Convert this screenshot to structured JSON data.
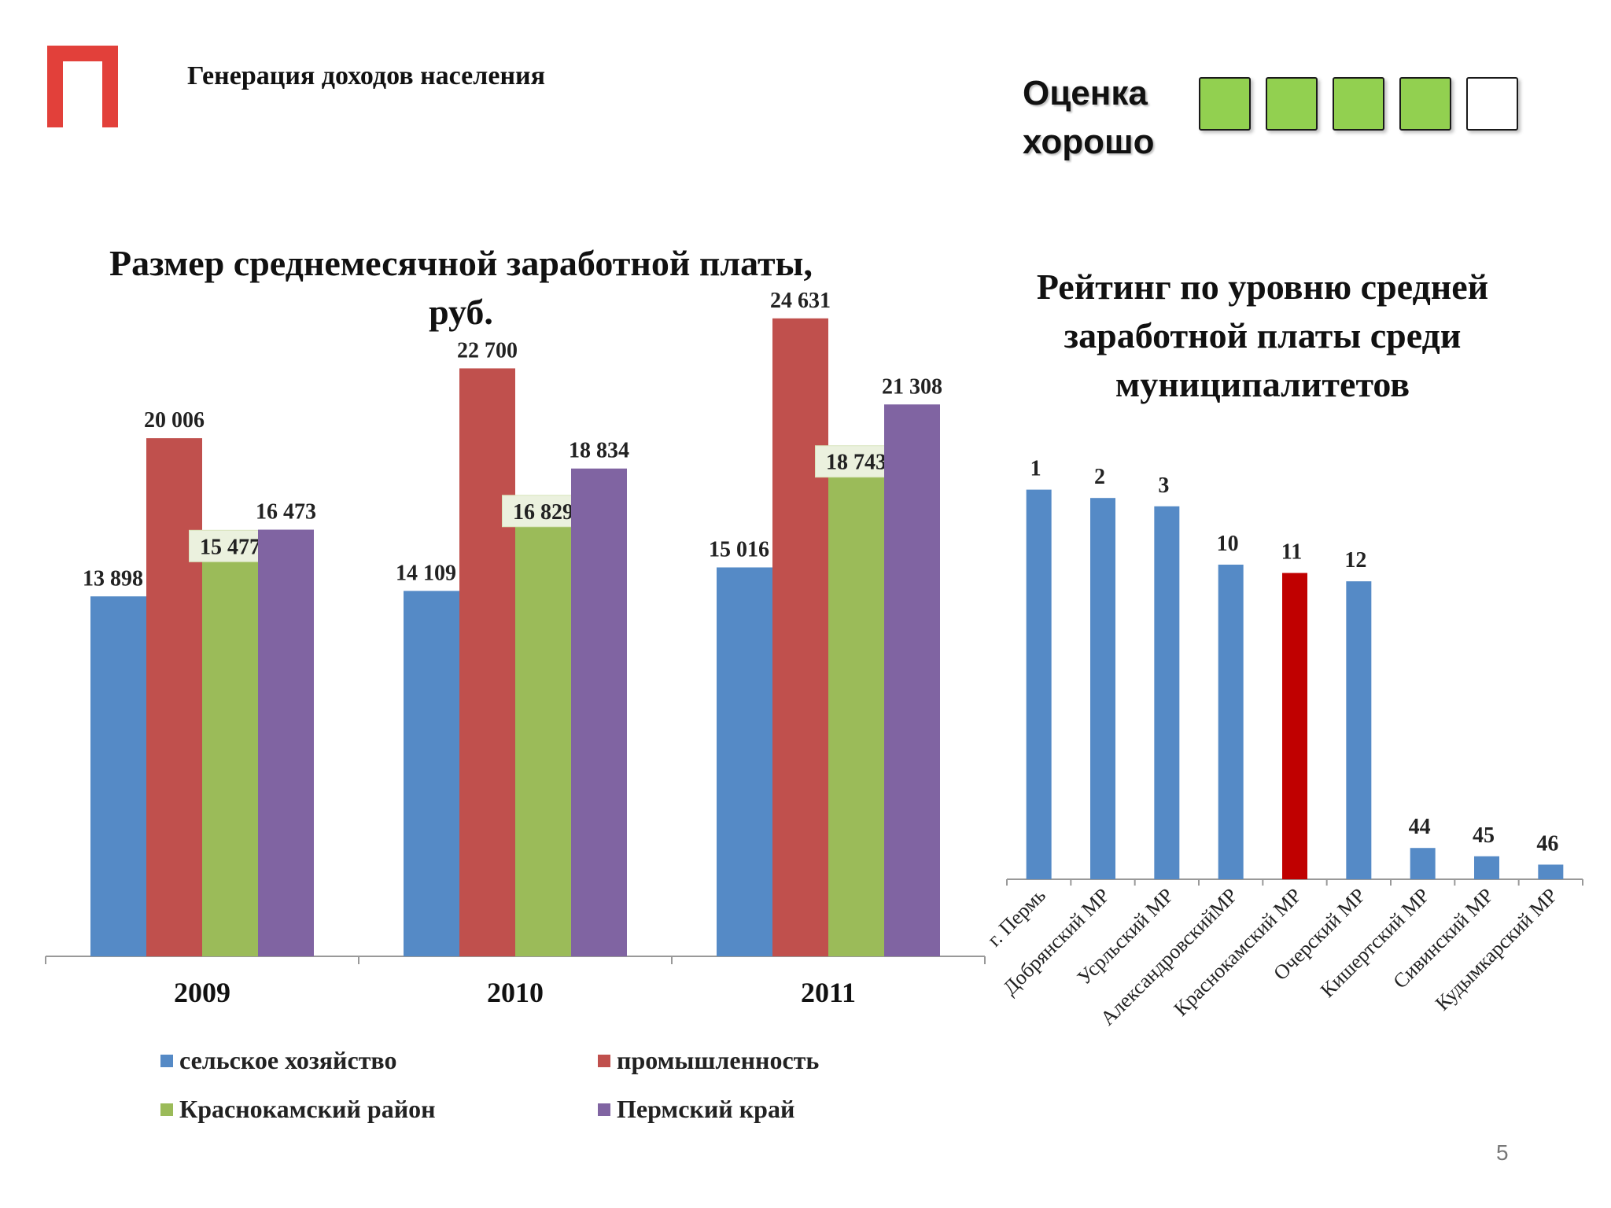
{
  "header": {
    "title": "Генерация доходов населения",
    "logo_color": "#e2403a"
  },
  "rating": {
    "label_line1": "Оценка",
    "label_line2": "хорошо",
    "score": 4,
    "max": 5,
    "filled_color": "#92d050",
    "empty_color": "#ffffff"
  },
  "page_number": "5",
  "chart_data": [
    {
      "type": "bar",
      "title": "Размер среднемесячной заработной платы, руб.",
      "categories": [
        "2009",
        "2010",
        "2011"
      ],
      "series": [
        {
          "name": "сельское хозяйство",
          "color": "#558ac6",
          "values": [
            13898,
            14109,
            15016
          ],
          "labels": [
            "13 898",
            "14 109",
            "15 016"
          ]
        },
        {
          "name": "промышленность",
          "color": "#c0504d",
          "values": [
            20006,
            22700,
            24631
          ],
          "labels": [
            "20 006",
            "22 700",
            "24 631"
          ]
        },
        {
          "name": "Краснокамский район",
          "color": "#9bbb59",
          "values": [
            15477,
            16829,
            18743
          ],
          "labels": [
            "15 477",
            "16 829",
            "18 743"
          ],
          "label_box": true
        },
        {
          "name": "Пермский край",
          "color": "#8064a2",
          "values": [
            16473,
            18834,
            21308
          ],
          "labels": [
            "16 473",
            "18 834",
            "21 308"
          ]
        }
      ],
      "ylim": [
        0,
        30000
      ],
      "grid": false,
      "legend_position": "bottom"
    },
    {
      "type": "bar",
      "title": "Рейтинг по уровню средней заработной платы среди муниципалитетов",
      "categories": [
        "г. Пермь",
        "Добрянский МР",
        "Усрльский МР",
        "АлександровскийМР",
        "Краснокамский МР",
        "Очерский МР",
        "Кишертский МР",
        "Сивинский МР",
        "Кудымкарский МР"
      ],
      "values": [
        1,
        2,
        3,
        10,
        11,
        12,
        44,
        45,
        46
      ],
      "colors": [
        "#558ac6",
        "#558ac6",
        "#558ac6",
        "#558ac6",
        "#c00000",
        "#558ac6",
        "#558ac6",
        "#558ac6",
        "#558ac6"
      ],
      "highlight": "Краснокамский МР",
      "y_reversed": true,
      "ylim": [
        0,
        47
      ],
      "grid": false
    }
  ]
}
